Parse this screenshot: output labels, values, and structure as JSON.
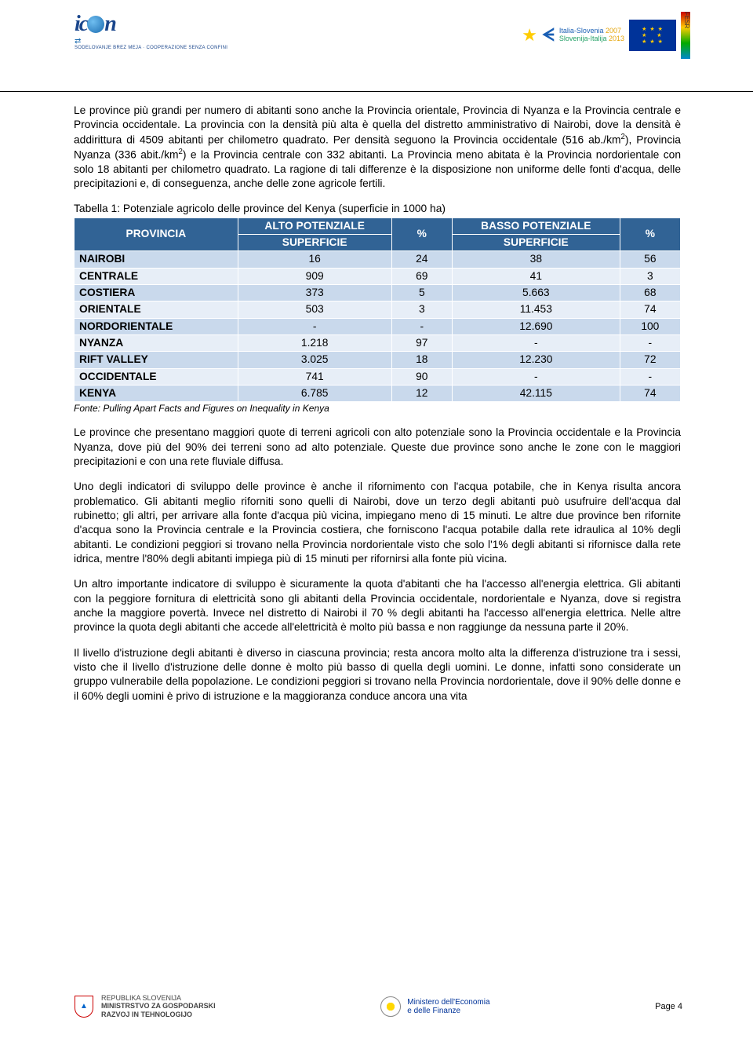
{
  "header": {
    "logo_left_sub": "SODELOVANJE BREZ MEJA · COOPERAZIONE SENZA CONFINI",
    "logo_right_line1": "Italia-Slovenia",
    "logo_right_year1": "2007",
    "logo_right_line2": "Slovenija-Italija",
    "logo_right_year2": "2013",
    "fesr": "FESR"
  },
  "para1_a": "Le province più grandi per numero di abitanti sono anche la Provincia orientale, Provincia di Nyanza e la Provincia centrale e Provincia occidentale. La provincia con la densità più alta è quella del distretto amministrativo di Nairobi, dove la densità è addirittura di 4509 abitanti per chilometro quadrato. Per densità seguono la Provincia occidentale (516 ab./km",
  "para1_b": "), Provincia Nyanza (336 abit./km",
  "para1_c": ") e la Provincia centrale con 332 abitanti. La Provincia meno abitata è la Provincia nordorientale con solo 18 abitanti per chilometro quadrato. La ragione di tali differenze è la disposizione non uniforme delle fonti d'acqua, delle precipitazioni e, di conseguenza, anche delle zone agricole fertili.",
  "table": {
    "title": "Tabella 1: Potenziale agricolo delle province del Kenya (superficie in 1000 ha)",
    "head": {
      "col1": "PROVINCIA",
      "col2a": "ALTO POTENZIALE",
      "col2b": "SUPERFICIE",
      "col3": "%",
      "col4a": "BASSO POTENZIALE",
      "col4b": "SUPERFICIE",
      "col5": "%"
    },
    "rows": [
      {
        "p": "NAIROBI",
        "a": "16",
        "pa": "24",
        "b": "38",
        "pb": "56"
      },
      {
        "p": "CENTRALE",
        "a": "909",
        "pa": "69",
        "b": "41",
        "pb": "3"
      },
      {
        "p": "COSTIERA",
        "a": "373",
        "pa": "5",
        "b": "5.663",
        "pb": "68"
      },
      {
        "p": "ORIENTALE",
        "a": "503",
        "pa": "3",
        "b": "11.453",
        "pb": "74"
      },
      {
        "p": "NORDORIENTALE",
        "a": "-",
        "pa": "-",
        "b": "12.690",
        "pb": "100"
      },
      {
        "p": "NYANZA",
        "a": "1.218",
        "pa": "97",
        "b": "-",
        "pb": "-"
      },
      {
        "p": "RIFT VALLEY",
        "a": "3.025",
        "pa": "18",
        "b": "12.230",
        "pb": "72"
      },
      {
        "p": "OCCIDENTALE",
        "a": "741",
        "pa": "90",
        "b": "-",
        "pb": "-"
      },
      {
        "p": "KENYA",
        "a": "6.785",
        "pa": "12",
        "b": "42.115",
        "pb": "74"
      }
    ],
    "source": "Fonte: Pulling Apart Facts and Figures on Inequality in Kenya"
  },
  "para2": "Le province che presentano maggiori quote di terreni agricoli con alto potenziale sono la Provincia occidentale e la Provincia Nyanza, dove più del 90% dei terreni sono ad alto potenziale. Queste due province sono anche le zone con le maggiori precipitazioni e con una rete fluviale diffusa.",
  "para3": "Uno degli indicatori di sviluppo delle province è anche il rifornimento con l'acqua potabile, che in Kenya risulta ancora problematico. Gli abitanti meglio riforniti sono quelli di Nairobi, dove un terzo degli abitanti può usufruire dell'acqua dal rubinetto; gli altri, per arrivare alla fonte d'acqua più vicina, impiegano meno di 15 minuti. Le altre due province ben rifornite d'acqua sono la Provincia centrale e la Provincia costiera, che forniscono l'acqua potabile dalla rete idraulica al 10% degli abitanti. Le condizioni peggiori si trovano nella Provincia nordorientale visto che solo l'1% degli abitanti si rifornisce dalla rete idrica, mentre l'80% degli abitanti impiega più di 15 minuti per rifornirsi alla fonte più vicina.",
  "para4": "Un altro importante indicatore di sviluppo è sicuramente la quota d'abitanti che ha l'accesso all'energia elettrica. Gli abitanti con la peggiore fornitura di elettricità sono gli abitanti della Provincia occidentale, nordorientale e Nyanza, dove si registra anche la maggiore povertà. Invece nel distretto di Nairobi il 70 % degli abitanti ha l'accesso all'energia elettrica. Nelle altre province la quota degli abitanti che accede all'elettricità è molto più bassa e non raggiunge da nessuna parte il 20%.",
  "para5": "Il livello d'istruzione degli abitanti è diverso in ciascuna provincia; resta ancora molto alta la differenza d'istruzione tra i sessi, visto che il livello d'istruzione delle donne è molto più basso di quella degli uomini. Le donne, infatti sono considerate un gruppo vulnerabile della popolazione. Le condizioni peggiori si trovano nella Provincia nordorientale, dove il 90% delle donne e il 60% degli uomini è privo di istruzione e la maggioranza conduce ancora una vita",
  "footer": {
    "left1": "REPUBLIKA SLOVENIJA",
    "left2": "MINISTRSTVO ZA GOSPODARSKI",
    "left3": "RAZVOJ IN TEHNOLOGIJO",
    "center1": "Ministero dell'Economia",
    "center2": "e delle Finanze",
    "page": "Page 4"
  },
  "colors": {
    "th_bg": "#316395",
    "row_odd": "#c9d9ec",
    "row_even": "#e7eef7"
  }
}
